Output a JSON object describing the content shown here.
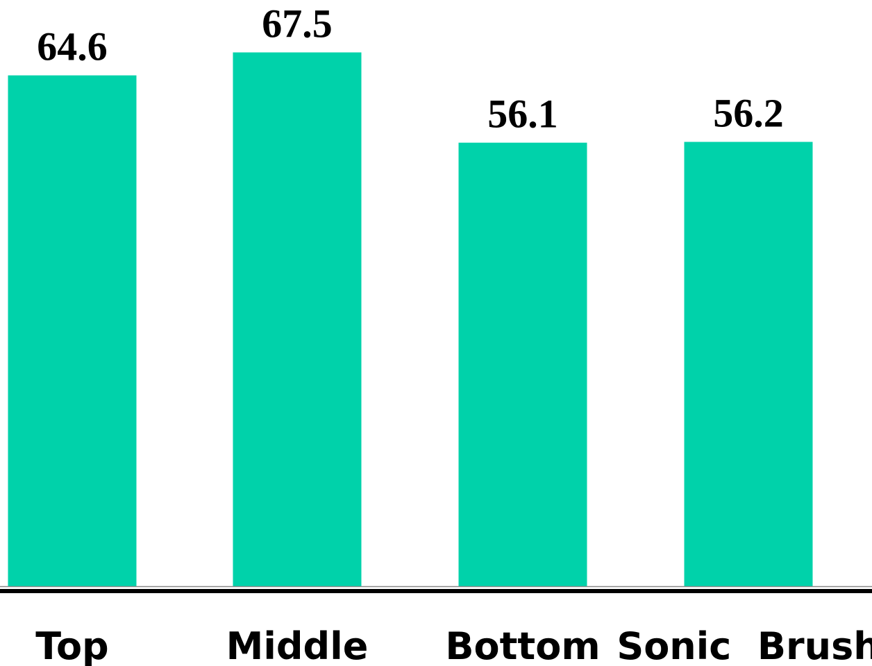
{
  "chart_data": {
    "type": "bar",
    "categories": [
      "Top",
      "Middle",
      "Bottom",
      "Sonic  Brush"
    ],
    "values": [
      64.6,
      67.5,
      56.1,
      56.2
    ],
    "data_labels": [
      "64.6",
      "67.5",
      "56.1",
      "56.2"
    ],
    "title": "",
    "xlabel": "",
    "ylabel": "",
    "ylim": [
      0,
      70
    ],
    "grid": false,
    "legend": "none",
    "colors": {
      "bar": "#00D2AA",
      "axis": "#000000",
      "axis_thin": "#888888",
      "text": "#000000"
    }
  }
}
